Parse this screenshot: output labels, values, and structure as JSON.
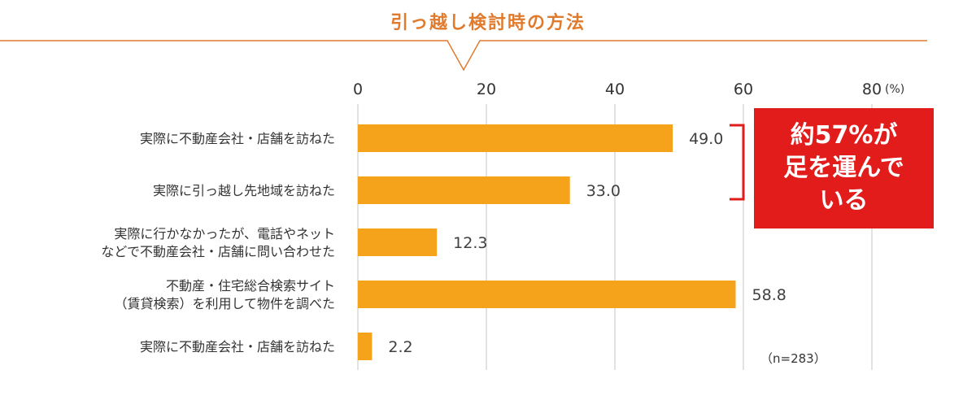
{
  "chart_data": {
    "type": "bar",
    "orientation": "horizontal",
    "title": "引っ越し検討時の方法",
    "unit_label": "(%)",
    "xlim": [
      0,
      80
    ],
    "xticks": [
      0,
      20,
      40,
      60,
      80
    ],
    "xtick_labels": [
      "0",
      "20",
      "40",
      "60",
      "80"
    ],
    "grid": true,
    "categories": [
      "実際に不動産会社・店舗を訪ねた",
      "実際に引っ越し先地域を訪ねた",
      "実際に行かなかったが、電話やネット\nなどで不動産会社・店舗に問い合わせた",
      "不動産・住宅総合検索サイト\n（賃貸検索）を利用して物件を調べた",
      "実際に不動産会社・店舗を訪ねた"
    ],
    "values": [
      49.0,
      33.0,
      12.3,
      58.8,
      2.2
    ],
    "data_labels": [
      "49.0",
      "33.0",
      "12.3",
      "58.8",
      "2.2"
    ],
    "bar_color": "#f5a31a",
    "annotation": "約57%が\n足を運んで\nいる",
    "annotation_color": "#e21b1b",
    "sample_note": "（n=283）",
    "title_color": "#e07b2e"
  }
}
